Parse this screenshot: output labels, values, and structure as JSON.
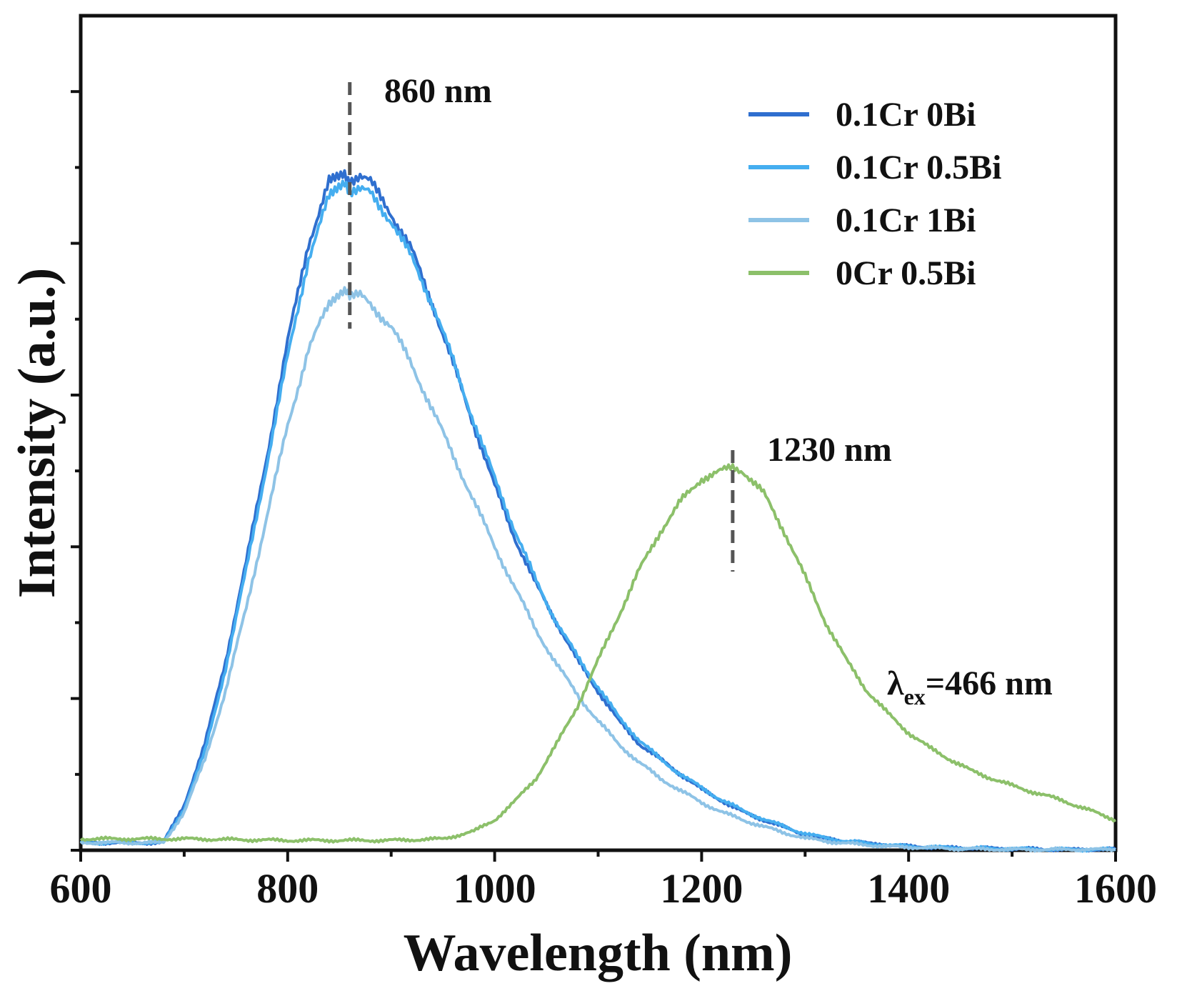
{
  "chart_data": {
    "type": "line",
    "title": "",
    "xlabel": "Wavelength (nm)",
    "ylabel": "Intensity (a.u.)",
    "xlim": [
      600,
      1600
    ],
    "ylim": [
      0,
      1.1
    ],
    "xticks": [
      600,
      800,
      1000,
      1200,
      1400,
      1600
    ],
    "xtick_labels": [
      "600",
      "800",
      "1000",
      "1200",
      "1400",
      "1600"
    ],
    "yticks": [
      0,
      0.2,
      0.4,
      0.6,
      0.8,
      1.0
    ],
    "legend_placement": "top-right",
    "grid": false,
    "series": [
      {
        "name": "0.1Cr 0Bi",
        "color": "#2f6fcf",
        "x": [
          600,
          650,
          670,
          680,
          700,
          720,
          740,
          760,
          780,
          800,
          820,
          840,
          855,
          860,
          870,
          880,
          900,
          920,
          940,
          960,
          980,
          1000,
          1020,
          1040,
          1060,
          1080,
          1100,
          1120,
          1140,
          1160,
          1180,
          1200,
          1220,
          1240,
          1260,
          1280,
          1300,
          1320,
          1340,
          1360,
          1380,
          1400,
          1450,
          1500,
          1550,
          1600
        ],
        "y": [
          0.01,
          0.01,
          0.01,
          0.01,
          0.06,
          0.14,
          0.25,
          0.38,
          0.52,
          0.67,
          0.8,
          0.88,
          0.89,
          0.885,
          0.89,
          0.88,
          0.84,
          0.79,
          0.72,
          0.64,
          0.56,
          0.48,
          0.41,
          0.35,
          0.3,
          0.25,
          0.21,
          0.17,
          0.14,
          0.12,
          0.1,
          0.08,
          0.065,
          0.05,
          0.04,
          0.03,
          0.02,
          0.015,
          0.012,
          0.009,
          0.007,
          0.005,
          0.003,
          0.002,
          0.001,
          0.001
        ]
      },
      {
        "name": "0.1Cr 0.5Bi",
        "color": "#45aef0",
        "x": [
          600,
          650,
          670,
          680,
          700,
          720,
          740,
          760,
          780,
          800,
          820,
          840,
          855,
          860,
          870,
          880,
          900,
          920,
          940,
          960,
          980,
          1000,
          1020,
          1040,
          1060,
          1080,
          1100,
          1120,
          1140,
          1160,
          1180,
          1200,
          1220,
          1240,
          1260,
          1280,
          1300,
          1320,
          1340,
          1360,
          1380,
          1400,
          1450,
          1500,
          1550,
          1600
        ],
        "y": [
          0.01,
          0.01,
          0.01,
          0.01,
          0.055,
          0.13,
          0.24,
          0.37,
          0.51,
          0.65,
          0.78,
          0.86,
          0.875,
          0.87,
          0.87,
          0.865,
          0.83,
          0.78,
          0.72,
          0.645,
          0.565,
          0.49,
          0.42,
          0.355,
          0.3,
          0.255,
          0.215,
          0.175,
          0.145,
          0.12,
          0.1,
          0.082,
          0.066,
          0.052,
          0.041,
          0.031,
          0.022,
          0.016,
          0.012,
          0.009,
          0.007,
          0.005,
          0.003,
          0.002,
          0.001,
          0.001
        ]
      },
      {
        "name": "0.1Cr 1Bi",
        "color": "#8ec3e6",
        "x": [
          600,
          650,
          670,
          680,
          700,
          720,
          740,
          760,
          780,
          800,
          820,
          840,
          855,
          860,
          870,
          880,
          900,
          920,
          940,
          960,
          980,
          1000,
          1020,
          1040,
          1060,
          1080,
          1100,
          1120,
          1140,
          1160,
          1180,
          1200,
          1220,
          1240,
          1260,
          1280,
          1300,
          1320,
          1340,
          1360,
          1380,
          1400,
          1450,
          1500,
          1550,
          1600
        ],
        "y": [
          0.01,
          0.01,
          0.01,
          0.01,
          0.05,
          0.12,
          0.21,
          0.32,
          0.44,
          0.56,
          0.66,
          0.72,
          0.735,
          0.73,
          0.73,
          0.72,
          0.69,
          0.64,
          0.58,
          0.52,
          0.46,
          0.4,
          0.345,
          0.29,
          0.245,
          0.205,
          0.17,
          0.14,
          0.115,
          0.095,
          0.078,
          0.063,
          0.05,
          0.04,
          0.031,
          0.023,
          0.016,
          0.012,
          0.009,
          0.007,
          0.005,
          0.004,
          0.002,
          0.001,
          0.001,
          0.001
        ]
      },
      {
        "name": "0Cr 0.5Bi",
        "color": "#8cc06a",
        "x": [
          600,
          700,
          800,
          900,
          950,
          980,
          1000,
          1020,
          1040,
          1060,
          1080,
          1100,
          1120,
          1140,
          1160,
          1180,
          1200,
          1220,
          1230,
          1240,
          1260,
          1280,
          1300,
          1320,
          1340,
          1360,
          1380,
          1400,
          1420,
          1440,
          1460,
          1480,
          1500,
          1550,
          1600
        ],
        "y": [
          0.015,
          0.015,
          0.013,
          0.013,
          0.015,
          0.025,
          0.04,
          0.065,
          0.095,
          0.14,
          0.19,
          0.25,
          0.31,
          0.37,
          0.42,
          0.46,
          0.49,
          0.5,
          0.505,
          0.5,
          0.47,
          0.42,
          0.36,
          0.3,
          0.25,
          0.21,
          0.18,
          0.155,
          0.135,
          0.12,
          0.105,
          0.095,
          0.085,
          0.065,
          0.04
        ]
      }
    ]
  },
  "annotations": {
    "peak1_label": "860 nm",
    "peak1_x": 860,
    "peak2_label": "1230 nm",
    "peak2_x": 1230,
    "excitation_symbol": "λ",
    "excitation_sub": "ex",
    "excitation_value": "=466 nm"
  }
}
